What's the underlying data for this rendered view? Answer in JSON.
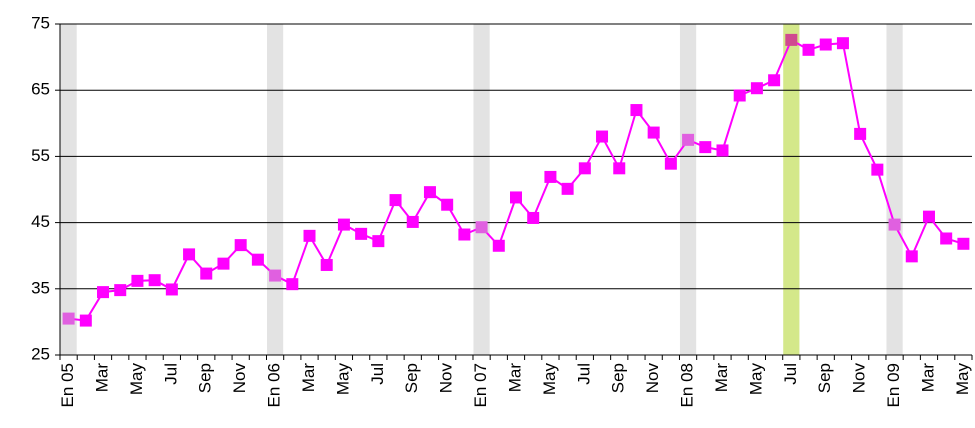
{
  "chart_data": {
    "type": "line",
    "categories": [
      "En 05",
      null,
      "Mar",
      null,
      "May",
      null,
      "Jul",
      null,
      "Sep",
      null,
      "Nov",
      null,
      "En 06",
      null,
      "Mar",
      null,
      "May",
      null,
      "Jul",
      null,
      "Sep",
      null,
      "Nov",
      null,
      "En 07",
      null,
      "Mar",
      null,
      "May",
      null,
      "Jul",
      null,
      "Sep",
      null,
      "Nov",
      null,
      "En 08",
      null,
      "Mar",
      null,
      "May",
      null,
      "Jul",
      null,
      "Sep",
      null,
      "Nov",
      null,
      "En 09",
      null,
      "Mar",
      null,
      "May"
    ],
    "values": [
      30.5,
      30.2,
      34.5,
      34.8,
      36.2,
      36.3,
      34.9,
      40.2,
      37.3,
      38.8,
      41.6,
      39.4,
      37.0,
      35.7,
      43.0,
      38.6,
      44.7,
      43.3,
      42.2,
      48.4,
      45.1,
      49.6,
      47.7,
      43.2,
      44.3,
      41.5,
      48.8,
      45.7,
      51.9,
      50.1,
      53.2,
      58.0,
      53.2,
      62.0,
      58.6,
      53.9,
      57.5,
      56.4,
      55.9,
      64.2,
      65.3,
      66.5,
      72.6,
      71.1,
      71.9,
      72.1,
      58.4,
      53.0,
      44.7,
      39.9,
      45.9,
      42.6,
      41.8
    ],
    "color": "#ff00ff",
    "highlights": [
      {
        "index": 0,
        "band_color": "#e3e3e3",
        "marker_color": "#e060e0"
      },
      {
        "index": 12,
        "band_color": "#e3e3e3",
        "marker_color": "#e060e0"
      },
      {
        "index": 24,
        "band_color": "#e3e3e3",
        "marker_color": "#e060e0"
      },
      {
        "index": 36,
        "band_color": "#e3e3e3",
        "marker_color": "#e060e0"
      },
      {
        "index": 42,
        "band_color": "#d4e88a",
        "marker_color": "#d04a90"
      },
      {
        "index": 48,
        "band_color": "#e3e3e3",
        "marker_color": "#e060e0"
      }
    ],
    "ylim": [
      25,
      75
    ],
    "yticks": [
      25,
      35,
      45,
      55,
      65,
      75
    ],
    "grid": true
  }
}
